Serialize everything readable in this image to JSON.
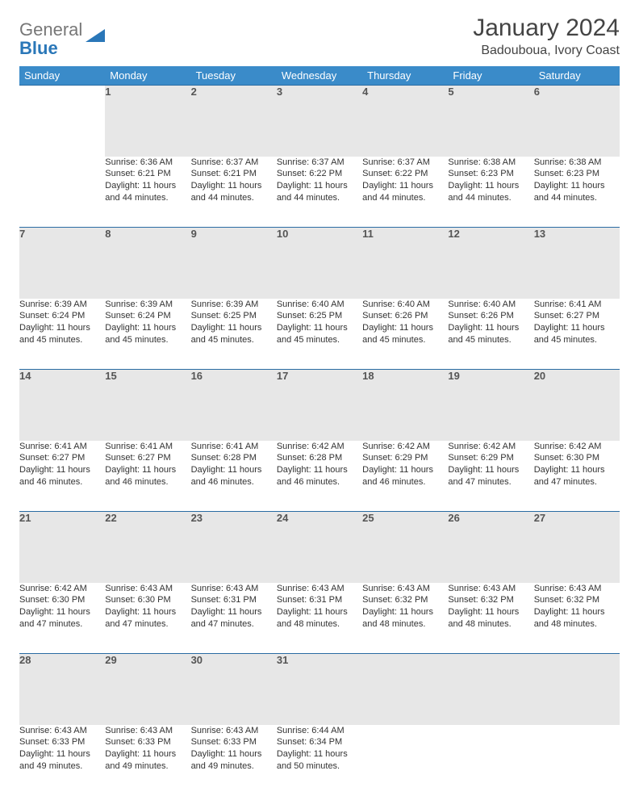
{
  "logo": {
    "word1": "General",
    "word2": "Blue"
  },
  "title": "January 2024",
  "location": "Badouboua, Ivory Coast",
  "colors": {
    "header_bg": "#3a8bc9",
    "header_text": "#ffffff",
    "daynum_bg": "#e7e7e7",
    "rule": "#2a6ca3",
    "logo_blue": "#2a77b8"
  },
  "weekdays": [
    "Sunday",
    "Monday",
    "Tuesday",
    "Wednesday",
    "Thursday",
    "Friday",
    "Saturday"
  ],
  "weeks": [
    [
      null,
      {
        "n": "1",
        "sr": "6:36 AM",
        "ss": "6:21 PM",
        "dl": "11 hours and 44 minutes."
      },
      {
        "n": "2",
        "sr": "6:37 AM",
        "ss": "6:21 PM",
        "dl": "11 hours and 44 minutes."
      },
      {
        "n": "3",
        "sr": "6:37 AM",
        "ss": "6:22 PM",
        "dl": "11 hours and 44 minutes."
      },
      {
        "n": "4",
        "sr": "6:37 AM",
        "ss": "6:22 PM",
        "dl": "11 hours and 44 minutes."
      },
      {
        "n": "5",
        "sr": "6:38 AM",
        "ss": "6:23 PM",
        "dl": "11 hours and 44 minutes."
      },
      {
        "n": "6",
        "sr": "6:38 AM",
        "ss": "6:23 PM",
        "dl": "11 hours and 44 minutes."
      }
    ],
    [
      {
        "n": "7",
        "sr": "6:39 AM",
        "ss": "6:24 PM",
        "dl": "11 hours and 45 minutes."
      },
      {
        "n": "8",
        "sr": "6:39 AM",
        "ss": "6:24 PM",
        "dl": "11 hours and 45 minutes."
      },
      {
        "n": "9",
        "sr": "6:39 AM",
        "ss": "6:25 PM",
        "dl": "11 hours and 45 minutes."
      },
      {
        "n": "10",
        "sr": "6:40 AM",
        "ss": "6:25 PM",
        "dl": "11 hours and 45 minutes."
      },
      {
        "n": "11",
        "sr": "6:40 AM",
        "ss": "6:26 PM",
        "dl": "11 hours and 45 minutes."
      },
      {
        "n": "12",
        "sr": "6:40 AM",
        "ss": "6:26 PM",
        "dl": "11 hours and 45 minutes."
      },
      {
        "n": "13",
        "sr": "6:41 AM",
        "ss": "6:27 PM",
        "dl": "11 hours and 45 minutes."
      }
    ],
    [
      {
        "n": "14",
        "sr": "6:41 AM",
        "ss": "6:27 PM",
        "dl": "11 hours and 46 minutes."
      },
      {
        "n": "15",
        "sr": "6:41 AM",
        "ss": "6:27 PM",
        "dl": "11 hours and 46 minutes."
      },
      {
        "n": "16",
        "sr": "6:41 AM",
        "ss": "6:28 PM",
        "dl": "11 hours and 46 minutes."
      },
      {
        "n": "17",
        "sr": "6:42 AM",
        "ss": "6:28 PM",
        "dl": "11 hours and 46 minutes."
      },
      {
        "n": "18",
        "sr": "6:42 AM",
        "ss": "6:29 PM",
        "dl": "11 hours and 46 minutes."
      },
      {
        "n": "19",
        "sr": "6:42 AM",
        "ss": "6:29 PM",
        "dl": "11 hours and 47 minutes."
      },
      {
        "n": "20",
        "sr": "6:42 AM",
        "ss": "6:30 PM",
        "dl": "11 hours and 47 minutes."
      }
    ],
    [
      {
        "n": "21",
        "sr": "6:42 AM",
        "ss": "6:30 PM",
        "dl": "11 hours and 47 minutes."
      },
      {
        "n": "22",
        "sr": "6:43 AM",
        "ss": "6:30 PM",
        "dl": "11 hours and 47 minutes."
      },
      {
        "n": "23",
        "sr": "6:43 AM",
        "ss": "6:31 PM",
        "dl": "11 hours and 47 minutes."
      },
      {
        "n": "24",
        "sr": "6:43 AM",
        "ss": "6:31 PM",
        "dl": "11 hours and 48 minutes."
      },
      {
        "n": "25",
        "sr": "6:43 AM",
        "ss": "6:32 PM",
        "dl": "11 hours and 48 minutes."
      },
      {
        "n": "26",
        "sr": "6:43 AM",
        "ss": "6:32 PM",
        "dl": "11 hours and 48 minutes."
      },
      {
        "n": "27",
        "sr": "6:43 AM",
        "ss": "6:32 PM",
        "dl": "11 hours and 48 minutes."
      }
    ],
    [
      {
        "n": "28",
        "sr": "6:43 AM",
        "ss": "6:33 PM",
        "dl": "11 hours and 49 minutes."
      },
      {
        "n": "29",
        "sr": "6:43 AM",
        "ss": "6:33 PM",
        "dl": "11 hours and 49 minutes."
      },
      {
        "n": "30",
        "sr": "6:43 AM",
        "ss": "6:33 PM",
        "dl": "11 hours and 49 minutes."
      },
      {
        "n": "31",
        "sr": "6:44 AM",
        "ss": "6:34 PM",
        "dl": "11 hours and 50 minutes."
      },
      null,
      null,
      null
    ]
  ],
  "labels": {
    "sunrise": "Sunrise: ",
    "sunset": "Sunset: ",
    "daylight": "Daylight: "
  }
}
